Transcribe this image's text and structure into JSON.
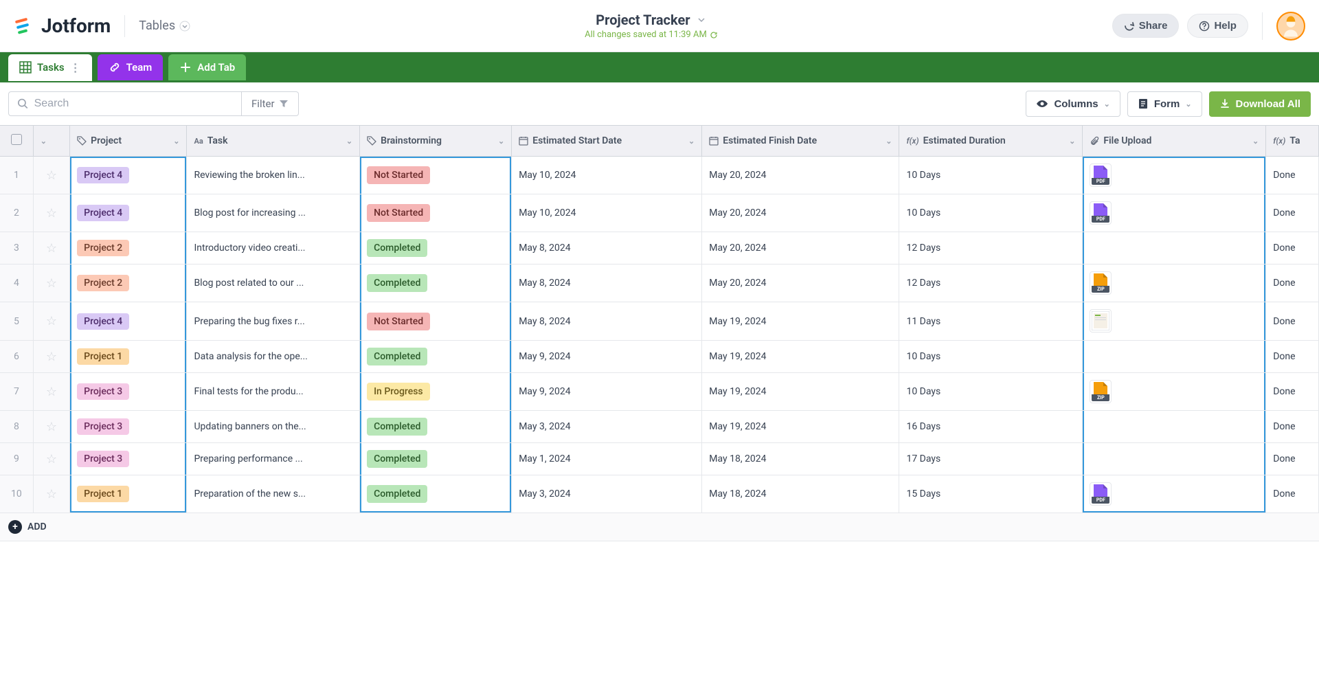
{
  "header": {
    "brand": "Jotform",
    "tables_label": "Tables",
    "title": "Project Tracker",
    "saved_text": "All changes saved at 11:39 AM",
    "share_label": "Share",
    "help_label": "Help"
  },
  "tabs": {
    "tasks": "Tasks",
    "team": "Team",
    "add": "Add Tab"
  },
  "toolbar": {
    "search_placeholder": "Search",
    "filter_label": "Filter",
    "columns_label": "Columns",
    "form_label": "Form",
    "download_label": "Download All"
  },
  "columns": {
    "project": "Project",
    "task": "Task",
    "brainstorming": "Brainstorming",
    "start": "Estimated Start Date",
    "finish": "Estimated Finish Date",
    "duration": "Estimated Duration",
    "file": "File Upload",
    "last": "Ta"
  },
  "status_colors": {
    "Not Started": {
      "bg": "#f5b5b5",
      "fg": "#6b2c2c"
    },
    "Completed": {
      "bg": "#b8e6b8",
      "fg": "#2c5c2c"
    },
    "In Progress": {
      "bg": "#fce9a5",
      "fg": "#6b5a1c"
    }
  },
  "project_colors": {
    "Project 1": {
      "bg": "#fcd9a5",
      "fg": "#6b4a1c"
    },
    "Project 2": {
      "bg": "#fcc9b5",
      "fg": "#6b3c2c"
    },
    "Project 3": {
      "bg": "#f5c9e6",
      "fg": "#6b2c5c"
    },
    "Project 4": {
      "bg": "#d9c9f5",
      "fg": "#4c2c6b"
    }
  },
  "file_types": {
    "PDF": {
      "color": "#8b5cf6",
      "label": "PDF"
    },
    "ZIP": {
      "color": "#f59e0b",
      "label": "ZIP"
    },
    "IMG": {
      "color": "#ffffff",
      "label": ""
    }
  },
  "rows": [
    {
      "n": "1",
      "project": "Project 4",
      "task": "Reviewing the broken lin...",
      "status": "Not Started",
      "start": "May 10, 2024",
      "finish": "May 20, 2024",
      "duration": "10 Days",
      "file": "PDF",
      "last": "Done"
    },
    {
      "n": "2",
      "project": "Project 4",
      "task": "Blog post for increasing ...",
      "status": "Not Started",
      "start": "May 10, 2024",
      "finish": "May 20, 2024",
      "duration": "10 Days",
      "file": "PDF",
      "last": "Done"
    },
    {
      "n": "3",
      "project": "Project 2",
      "task": "Introductory video creati...",
      "status": "Completed",
      "start": "May 8, 2024",
      "finish": "May 20, 2024",
      "duration": "12 Days",
      "file": "",
      "last": "Done"
    },
    {
      "n": "4",
      "project": "Project 2",
      "task": "Blog post related to our ...",
      "status": "Completed",
      "start": "May 8, 2024",
      "finish": "May 20, 2024",
      "duration": "12 Days",
      "file": "ZIP",
      "last": "Done"
    },
    {
      "n": "5",
      "project": "Project 4",
      "task": "Preparing the bug fixes r...",
      "status": "Not Started",
      "start": "May 8, 2024",
      "finish": "May 19, 2024",
      "duration": "11 Days",
      "file": "IMG",
      "last": "Done"
    },
    {
      "n": "6",
      "project": "Project 1",
      "task": "Data analysis for the ope...",
      "status": "Completed",
      "start": "May 9, 2024",
      "finish": "May 19, 2024",
      "duration": "10 Days",
      "file": "",
      "last": "Done"
    },
    {
      "n": "7",
      "project": "Project 3",
      "task": "Final tests for the produ...",
      "status": "In Progress",
      "start": "May 9, 2024",
      "finish": "May 19, 2024",
      "duration": "10 Days",
      "file": "ZIP",
      "last": "Done"
    },
    {
      "n": "8",
      "project": "Project 3",
      "task": "Updating banners on the...",
      "status": "Completed",
      "start": "May 3, 2024",
      "finish": "May 19, 2024",
      "duration": "16 Days",
      "file": "",
      "last": "Done"
    },
    {
      "n": "9",
      "project": "Project 3",
      "task": "Preparing performance ...",
      "status": "Completed",
      "start": "May 1, 2024",
      "finish": "May 18, 2024",
      "duration": "17 Days",
      "file": "",
      "last": "Done"
    },
    {
      "n": "10",
      "project": "Project 1",
      "task": "Preparation of the new s...",
      "status": "Completed",
      "start": "May 3, 2024",
      "finish": "May 18, 2024",
      "duration": "15 Days",
      "file": "PDF",
      "last": "Done"
    }
  ],
  "add_label": "ADD"
}
